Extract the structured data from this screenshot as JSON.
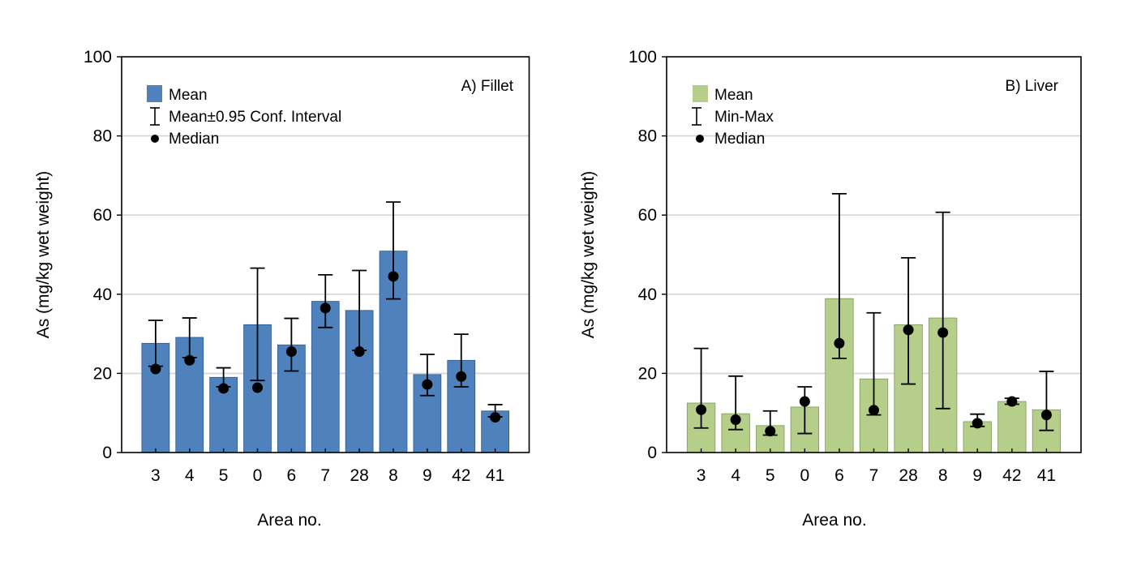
{
  "chart_data": [
    {
      "type": "bar",
      "panel_title": "A) Fillet",
      "title": "",
      "xlabel": "Area no.",
      "ylabel": "As (mg/kg wet weight)",
      "ylim": [
        0,
        100
      ],
      "yticks": [
        0,
        20,
        40,
        60,
        80,
        100
      ],
      "grid": true,
      "legend_position": "top-left",
      "bar_color": "#4F81BD",
      "legend": [
        {
          "type": "bar",
          "label": "Mean"
        },
        {
          "type": "errorbar",
          "label": "Mean±0.95 Conf. Interval"
        },
        {
          "type": "point",
          "label": "Median"
        }
      ],
      "categories": [
        "3",
        "4",
        "5",
        "0",
        "6",
        "7",
        "28",
        "8",
        "9",
        "42",
        "41"
      ],
      "series": [
        {
          "name": "Mean",
          "values": [
            27.6,
            29.1,
            19.0,
            32.3,
            27.2,
            38.2,
            35.9,
            50.9,
            19.7,
            23.3,
            10.5
          ]
        },
        {
          "name": "Upper 0.95 CI",
          "values": [
            33.4,
            34.0,
            21.4,
            46.6,
            33.9,
            44.9,
            46.0,
            63.3,
            24.8,
            29.9,
            12.1
          ]
        },
        {
          "name": "Lower 0.95 CI",
          "values": [
            21.8,
            24.0,
            16.6,
            18.2,
            20.6,
            31.6,
            25.8,
            38.8,
            14.4,
            16.6,
            9.0
          ]
        },
        {
          "name": "Median",
          "values": [
            21.1,
            23.3,
            16.2,
            16.4,
            25.5,
            36.5,
            25.5,
            44.5,
            17.2,
            19.2,
            8.9
          ]
        }
      ]
    },
    {
      "type": "bar",
      "panel_title": "B) Liver",
      "title": "",
      "xlabel": "Area no.",
      "ylabel": "As (mg/kg wet weight)",
      "ylim": [
        0,
        100
      ],
      "yticks": [
        0,
        20,
        40,
        60,
        80,
        100
      ],
      "grid": true,
      "legend_position": "top-left",
      "bar_color": "#B5CE8A",
      "legend": [
        {
          "type": "bar",
          "label": "Mean"
        },
        {
          "type": "errorbar",
          "label": "Min-Max"
        },
        {
          "type": "point",
          "label": "Median"
        }
      ],
      "categories": [
        "3",
        "4",
        "5",
        "0",
        "6",
        "7",
        "28",
        "8",
        "9",
        "42",
        "41"
      ],
      "series": [
        {
          "name": "Mean",
          "values": [
            12.5,
            9.8,
            6.8,
            11.5,
            38.9,
            18.6,
            32.3,
            34.0,
            7.8,
            12.9,
            10.8
          ]
        },
        {
          "name": "Max",
          "values": [
            26.3,
            19.3,
            10.5,
            16.6,
            65.4,
            35.3,
            49.2,
            60.7,
            9.7,
            13.7,
            20.5
          ]
        },
        {
          "name": "Min",
          "values": [
            6.2,
            5.8,
            4.4,
            4.8,
            23.8,
            9.5,
            17.3,
            11.1,
            6.6,
            12.2,
            5.6
          ]
        },
        {
          "name": "Median",
          "values": [
            10.8,
            8.3,
            5.4,
            12.9,
            27.6,
            10.7,
            31.0,
            30.3,
            7.4,
            12.9,
            9.5
          ]
        }
      ]
    }
  ]
}
